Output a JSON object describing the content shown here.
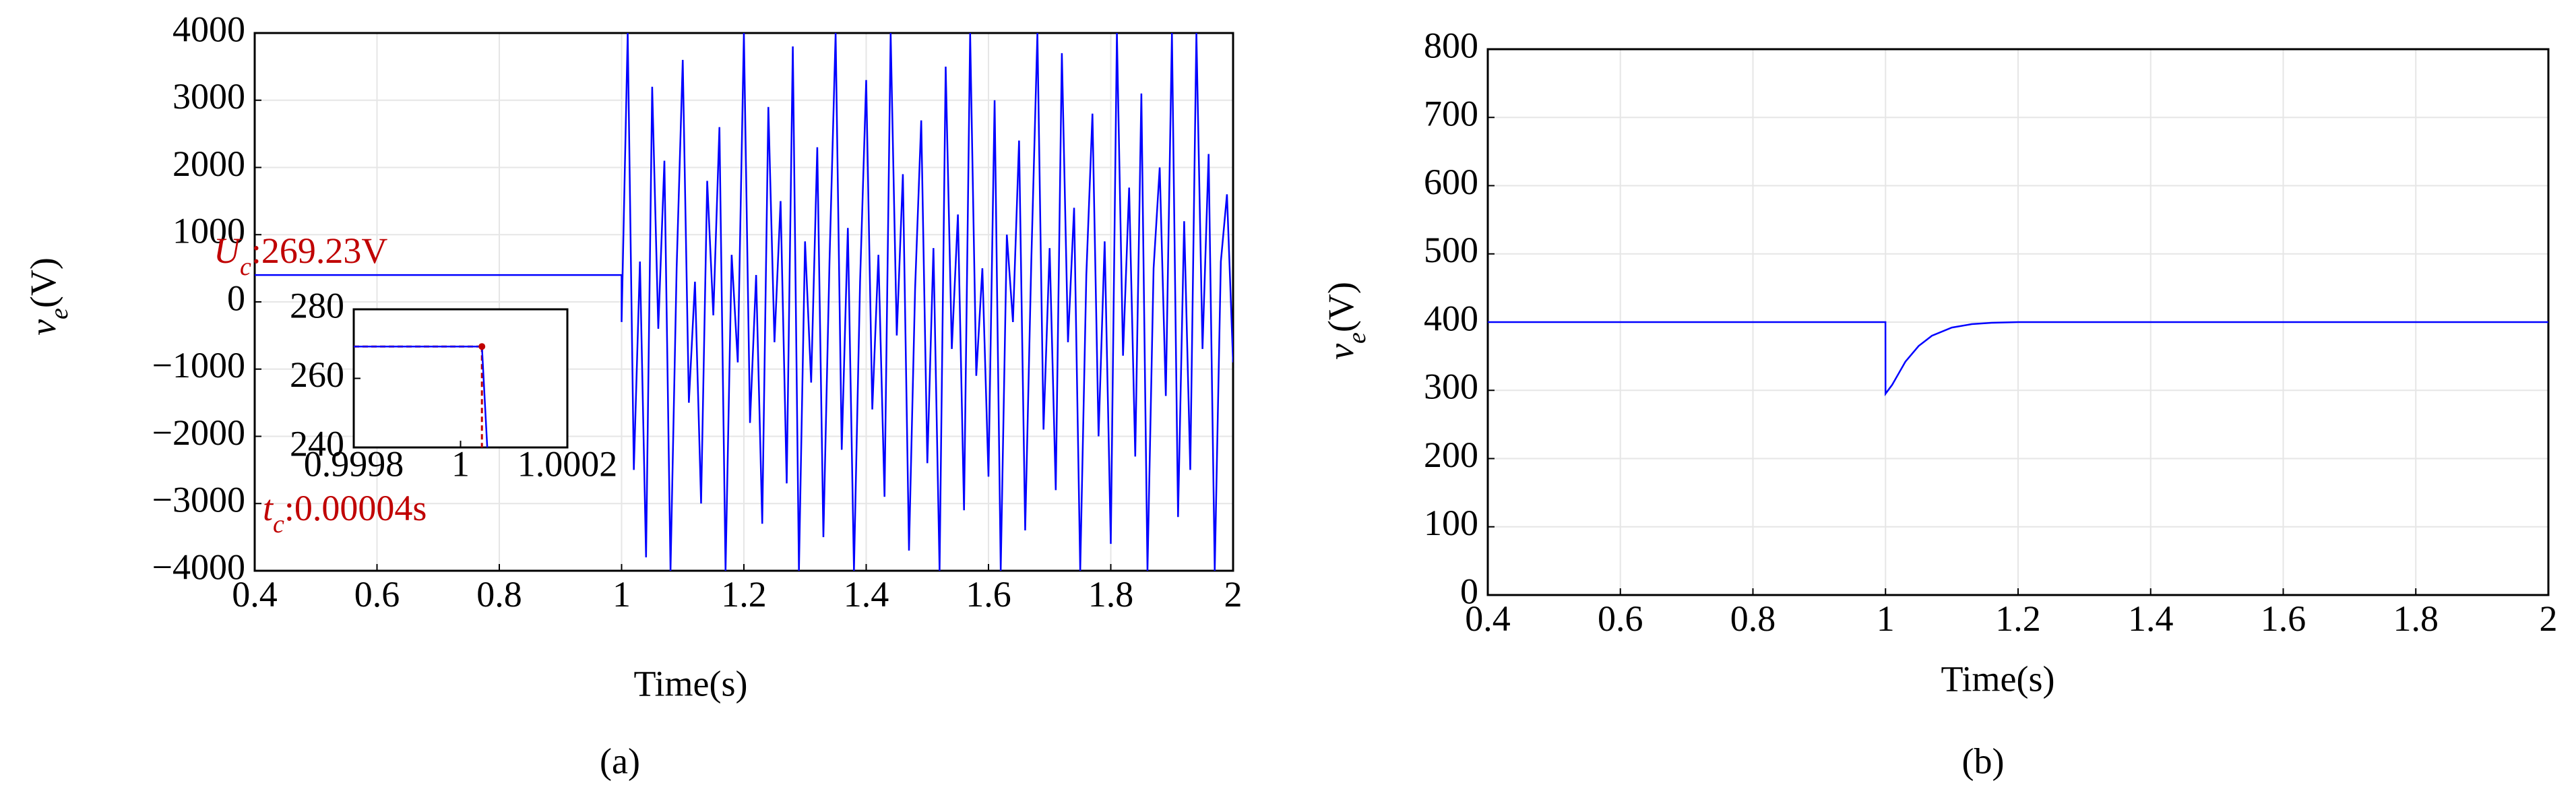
{
  "chart_data": [
    {
      "type": "line",
      "panel_label": "(a)",
      "x_label": "Time(s)",
      "y_label": {
        "symbol": "v",
        "subscript": "e",
        "unit": "(V)"
      },
      "xlim": [
        0.4,
        2
      ],
      "xticks": [
        0.4,
        0.6,
        0.8,
        1,
        1.2,
        1.4,
        1.6,
        1.8,
        2
      ],
      "ylim": [
        -4000,
        4000
      ],
      "yticks": [
        {
          "value": -4000,
          "label": "−4000"
        },
        {
          "value": -3000,
          "label": "−3000"
        },
        {
          "value": -2000,
          "label": "−2000"
        },
        {
          "value": -1000,
          "label": "−1000"
        },
        0,
        1000,
        2000,
        3000,
        4000
      ],
      "grid": true,
      "x": [
        0.4,
        0.99999,
        1.0,
        1.01,
        1.02,
        1.03,
        1.04,
        1.05,
        1.06,
        1.07,
        1.08,
        1.09,
        1.1,
        1.11,
        1.12,
        1.13,
        1.14,
        1.15,
        1.16,
        1.17,
        1.18,
        1.19,
        1.2,
        1.21,
        1.22,
        1.23,
        1.24,
        1.25,
        1.26,
        1.27,
        1.28,
        1.29,
        1.3,
        1.31,
        1.32,
        1.33,
        1.34,
        1.35,
        1.36,
        1.37,
        1.38,
        1.39,
        1.4,
        1.41,
        1.42,
        1.43,
        1.44,
        1.45,
        1.46,
        1.47,
        1.48,
        1.49,
        1.5,
        1.51,
        1.52,
        1.53,
        1.54,
        1.55,
        1.56,
        1.57,
        1.58,
        1.59,
        1.6,
        1.61,
        1.62,
        1.63,
        1.64,
        1.65,
        1.66,
        1.67,
        1.68,
        1.69,
        1.7,
        1.71,
        1.72,
        1.73,
        1.74,
        1.75,
        1.76,
        1.77,
        1.78,
        1.79,
        1.8,
        1.81,
        1.82,
        1.83,
        1.84,
        1.85,
        1.86,
        1.87,
        1.88,
        1.89,
        1.9,
        1.91,
        1.92,
        1.93,
        1.94,
        1.95,
        1.96,
        1.97,
        1.98,
        1.99,
        2.0
      ],
      "series": [
        {
          "color": "#0000ff",
          "values": [
            400,
            400,
            -300,
            4000,
            -2500,
            600,
            -3800,
            3200,
            -400,
            2100,
            -4000,
            500,
            3600,
            -1500,
            300,
            -3000,
            1800,
            -200,
            2600,
            -4000,
            700,
            -900,
            4000,
            -1800,
            400,
            -3300,
            2900,
            -600,
            1500,
            -2700,
            3800,
            -4000,
            900,
            -1200,
            2300,
            -3500,
            600,
            4000,
            -2200,
            1100,
            -4000,
            300,
            3300,
            -1600,
            700,
            -2900,
            4000,
            -500,
            1900,
            -3700,
            200,
            2700,
            -2400,
            800,
            -4000,
            3500,
            -700,
            1300,
            -3100,
            4000,
            -1100,
            500,
            -2600,
            3000,
            -4000,
            1000,
            -300,
            2400,
            -3400,
            600,
            4000,
            -1900,
            800,
            -2800,
            3700,
            -600,
            1400,
            -4000,
            400,
            2800,
            -2000,
            900,
            -3600,
            4000,
            -800,
            1700,
            -2300,
            3100,
            -4000,
            500,
            2000,
            -1400,
            4000,
            -3200,
            1200,
            -2500,
            4000,
            -700,
            2200,
            -4000,
            600,
            1600,
            -900
          ]
        }
      ],
      "annotations": [
        {
          "symbol": "U",
          "subscript": "c",
          "text": ":269.23V"
        },
        {
          "symbol": "t",
          "subscript": "c",
          "text": ":0.00004s"
        }
      ],
      "inset": {
        "xlim": [
          0.9998,
          1.0002
        ],
        "xticks": [
          0.9998,
          1,
          1.0002
        ],
        "ylim": [
          240,
          280
        ],
        "yticks": [
          240,
          260,
          280
        ],
        "x": [
          0.9998,
          1.00004,
          1.00005
        ],
        "values": [
          269.23,
          269.23,
          240
        ],
        "point": {
          "x": 1.00004,
          "y": 269.23
        }
      }
    },
    {
      "type": "line",
      "panel_label": "(b)",
      "x_label": "Time(s)",
      "y_label": {
        "symbol": "v",
        "subscript": "e",
        "unit": "(V)"
      },
      "xlim": [
        0.4,
        2
      ],
      "xticks": [
        0.4,
        0.6,
        0.8,
        1,
        1.2,
        1.4,
        1.6,
        1.8,
        2
      ],
      "ylim": [
        0,
        800
      ],
      "yticks": [
        0,
        100,
        200,
        300,
        400,
        500,
        600,
        700,
        800
      ],
      "grid": true,
      "x": [
        0.4,
        0.9999,
        1.0,
        1.01,
        1.02,
        1.03,
        1.05,
        1.07,
        1.1,
        1.13,
        1.16,
        1.2,
        2
      ],
      "series": [
        {
          "color": "#0000ff",
          "values": [
            400,
            400,
            295,
            308,
            325,
            342,
            365,
            380,
            392,
            397,
            399,
            400,
            400
          ]
        }
      ]
    }
  ]
}
